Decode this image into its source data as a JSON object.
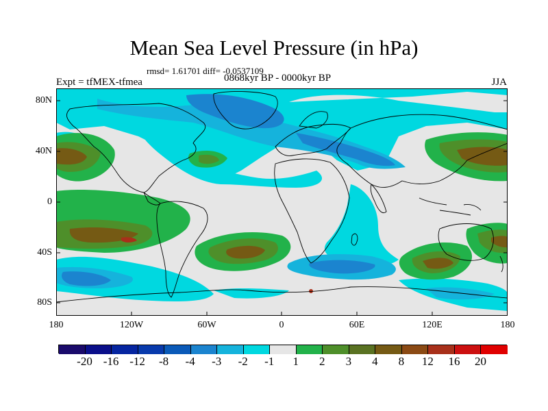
{
  "title": "Mean Sea Level Pressure (in hPa)",
  "stats_line": "rmsd= 1.61701 diff= -0.0537109",
  "period": "0868kyr BP - 0000kyr BP",
  "experiment": "Expt = tfMEX-tfmea",
  "season": "JJA",
  "lat_labels": [
    "80N",
    "40N",
    "0",
    "40S",
    "80S"
  ],
  "lon_labels": [
    "180",
    "120W",
    "60W",
    "0",
    "60E",
    "120E",
    "180"
  ],
  "colorbar": {
    "labels": [
      "-20",
      "-16",
      "-12",
      "-8",
      "-4",
      "-3",
      "-2",
      "-1",
      "1",
      "2",
      "3",
      "4",
      "8",
      "12",
      "16",
      "20"
    ],
    "colors": [
      "#1a0a6b",
      "#0a0f8a",
      "#0525a0",
      "#083aac",
      "#0a5ab8",
      "#1b84cf",
      "#15b3dc",
      "#00d8e0",
      "#e6e6e6",
      "#22b24a",
      "#4e8f2a",
      "#5a7222",
      "#755a14",
      "#8b4a14",
      "#a8301a",
      "#cc1010",
      "#e00000"
    ]
  }
}
